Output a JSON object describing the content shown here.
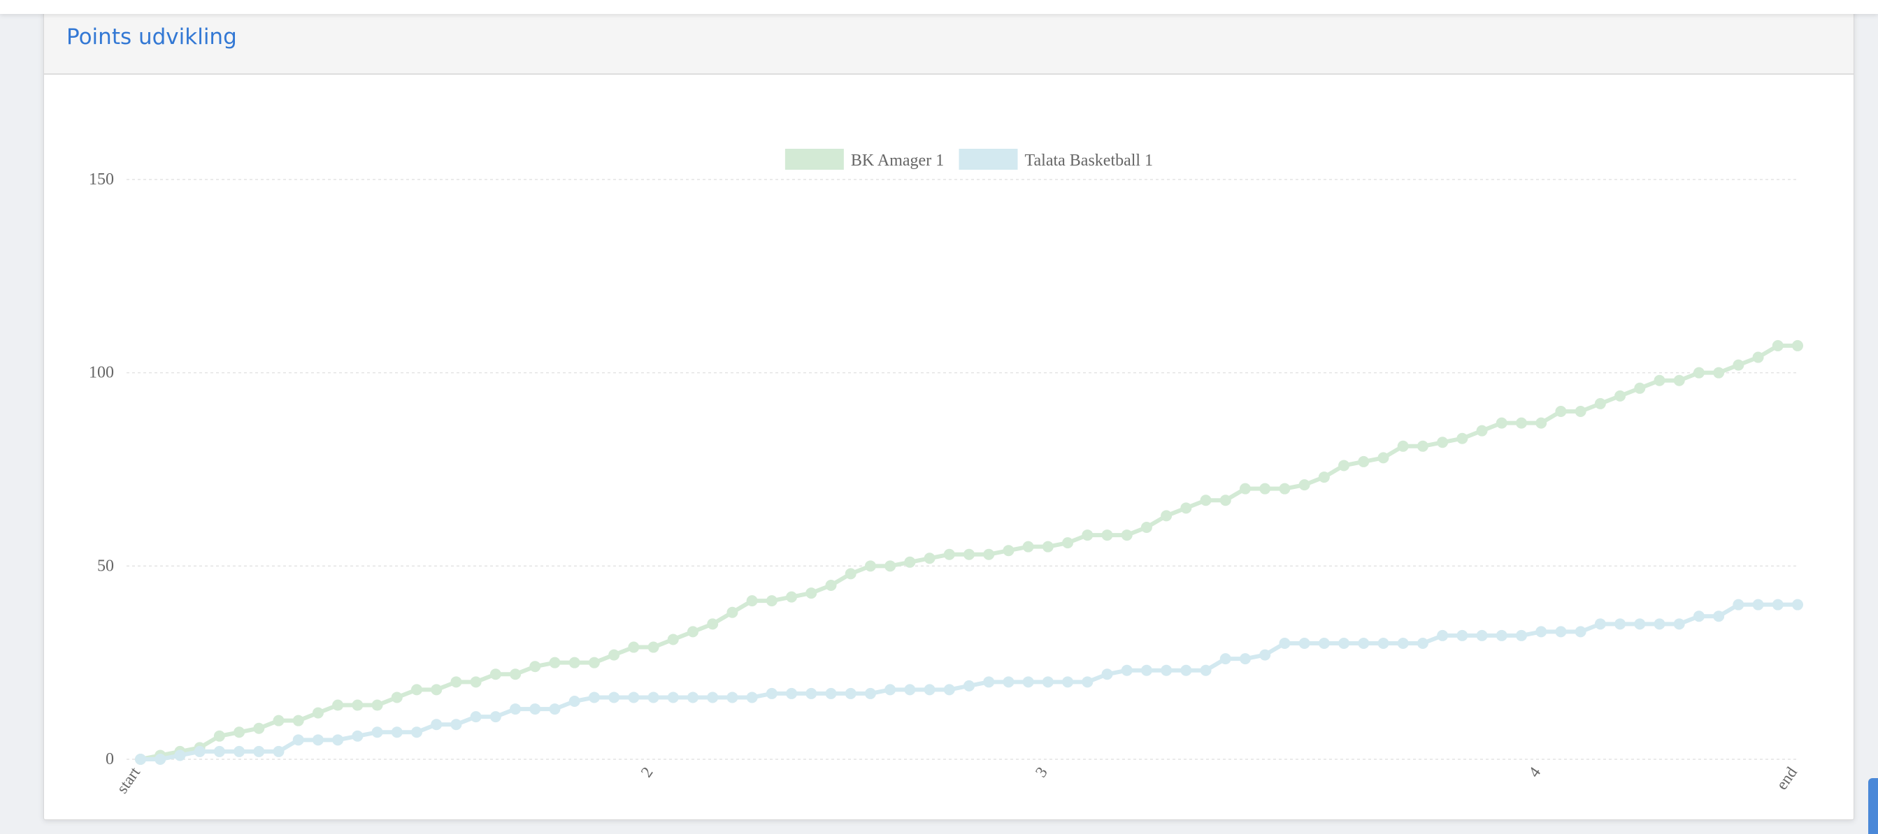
{
  "panel": {
    "title": "Points udvikling"
  },
  "chart_data": {
    "type": "line",
    "title": "",
    "xlabel": "",
    "ylabel": "",
    "ylim": [
      0,
      150
    ],
    "yticks": [
      0,
      50,
      100,
      150
    ],
    "grid": true,
    "legend_position": "top",
    "x_tick_labels": [
      {
        "label": "start",
        "index": 0
      },
      {
        "label": "2",
        "index": 26
      },
      {
        "label": "3",
        "index": 46
      },
      {
        "label": "4",
        "index": 71
      },
      {
        "label": "end",
        "index": 84
      }
    ],
    "series": [
      {
        "name": "BK Amager 1",
        "color": "#d3ead5",
        "values": [
          0,
          1,
          2,
          3,
          6,
          7,
          8,
          10,
          10,
          12,
          14,
          14,
          14,
          16,
          18,
          18,
          20,
          20,
          22,
          22,
          24,
          25,
          25,
          25,
          27,
          29,
          29,
          31,
          33,
          35,
          38,
          41,
          41,
          42,
          43,
          45,
          48,
          50,
          50,
          51,
          52,
          53,
          53,
          53,
          54,
          55,
          55,
          56,
          58,
          58,
          58,
          60,
          63,
          65,
          67,
          67,
          70,
          70,
          70,
          71,
          73,
          76,
          77,
          78,
          81,
          81,
          82,
          83,
          85,
          87,
          87,
          87,
          90,
          90,
          92,
          94,
          96,
          98,
          98,
          100,
          100,
          102,
          104,
          107,
          107
        ]
      },
      {
        "name": "Talata Basketball 1",
        "color": "#d3e9f0",
        "values": [
          0,
          0,
          1,
          2,
          2,
          2,
          2,
          2,
          5,
          5,
          5,
          6,
          7,
          7,
          7,
          9,
          9,
          11,
          11,
          13,
          13,
          13,
          15,
          16,
          16,
          16,
          16,
          16,
          16,
          16,
          16,
          16,
          17,
          17,
          17,
          17,
          17,
          17,
          18,
          18,
          18,
          18,
          19,
          20,
          20,
          20,
          20,
          20,
          20,
          22,
          23,
          23,
          23,
          23,
          23,
          26,
          26,
          27,
          30,
          30,
          30,
          30,
          30,
          30,
          30,
          30,
          32,
          32,
          32,
          32,
          32,
          33,
          33,
          33,
          35,
          35,
          35,
          35,
          35,
          37,
          37,
          40,
          40,
          40,
          40
        ]
      }
    ]
  }
}
